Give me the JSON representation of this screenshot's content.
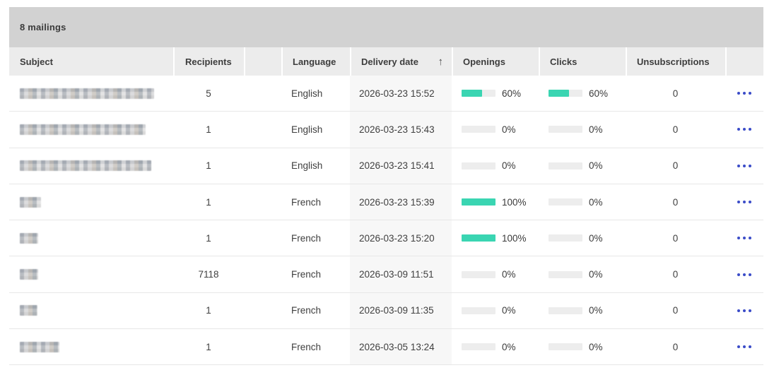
{
  "summary": {
    "count_label": "8 mailings"
  },
  "colors": {
    "title_bar_bg": "#d2d2d2",
    "header_bg": "#ececec",
    "sorted_column_bg": "#f7f7f7",
    "progress_fill": "#3ad5b2",
    "progress_track": "#ededed",
    "menu_dots": "#3b4cc8"
  },
  "table": {
    "columns": {
      "subject": "Subject",
      "recipients": "Recipients",
      "spacer": "",
      "language": "Language",
      "delivery_date": "Delivery date",
      "openings": "Openings",
      "clicks": "Clicks",
      "unsubscriptions": "Unsubscriptions",
      "actions": ""
    },
    "sort": {
      "column": "delivery_date",
      "direction": "asc",
      "icon": "↑"
    },
    "rows": [
      {
        "subject_redacted": true,
        "subject_blur_width": 190,
        "recipients": "5",
        "language": "English",
        "delivery_date": "2026-03-23 15:52",
        "openings_pct": 60,
        "openings_label": "60%",
        "clicks_pct": 60,
        "clicks_label": "60%",
        "unsubscriptions": "0"
      },
      {
        "subject_redacted": true,
        "subject_blur_width": 178,
        "recipients": "1",
        "language": "English",
        "delivery_date": "2026-03-23 15:43",
        "openings_pct": 0,
        "openings_label": "0%",
        "clicks_pct": 0,
        "clicks_label": "0%",
        "unsubscriptions": "0"
      },
      {
        "subject_redacted": true,
        "subject_blur_width": 186,
        "recipients": "1",
        "language": "English",
        "delivery_date": "2026-03-23 15:41",
        "openings_pct": 0,
        "openings_label": "0%",
        "clicks_pct": 0,
        "clicks_label": "0%",
        "unsubscriptions": "0"
      },
      {
        "subject_redacted": true,
        "subject_blur_width": 30,
        "recipients": "1",
        "language": "French",
        "delivery_date": "2026-03-23 15:39",
        "openings_pct": 100,
        "openings_label": "100%",
        "clicks_pct": 0,
        "clicks_label": "0%",
        "unsubscriptions": "0"
      },
      {
        "subject_redacted": true,
        "subject_blur_width": 26,
        "recipients": "1",
        "language": "French",
        "delivery_date": "2026-03-23 15:20",
        "openings_pct": 100,
        "openings_label": "100%",
        "clicks_pct": 0,
        "clicks_label": "0%",
        "unsubscriptions": "0"
      },
      {
        "subject_redacted": true,
        "subject_blur_width": 26,
        "recipients": "7118",
        "language": "French",
        "delivery_date": "2026-03-09 11:51",
        "openings_pct": 0,
        "openings_label": "0%",
        "clicks_pct": 0,
        "clicks_label": "0%",
        "unsubscriptions": "0"
      },
      {
        "subject_redacted": true,
        "subject_blur_width": 25,
        "recipients": "1",
        "language": "French",
        "delivery_date": "2026-03-09 11:35",
        "openings_pct": 0,
        "openings_label": "0%",
        "clicks_pct": 0,
        "clicks_label": "0%",
        "unsubscriptions": "0"
      },
      {
        "subject_redacted": true,
        "subject_blur_width": 56,
        "recipients": "1",
        "language": "French",
        "delivery_date": "2026-03-05 13:24",
        "openings_pct": 0,
        "openings_label": "0%",
        "clicks_pct": 0,
        "clicks_label": "0%",
        "unsubscriptions": "0"
      }
    ]
  }
}
